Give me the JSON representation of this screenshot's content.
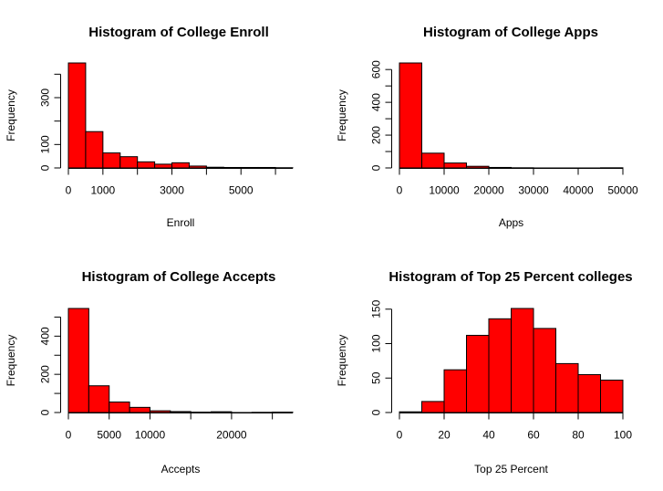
{
  "chart_data": [
    {
      "type": "bar",
      "title": "Histogram of College Enroll",
      "xlabel": "Enroll",
      "ylabel": "Frequency",
      "bins": [
        [
          0,
          500
        ],
        [
          500,
          1000
        ],
        [
          1000,
          1500
        ],
        [
          1500,
          2000
        ],
        [
          2000,
          2500
        ],
        [
          2500,
          3000
        ],
        [
          3000,
          3500
        ],
        [
          3500,
          4000
        ],
        [
          4000,
          4500
        ],
        [
          4500,
          5000
        ],
        [
          5000,
          5500
        ],
        [
          5500,
          6000
        ],
        [
          6000,
          6500
        ]
      ],
      "values": [
        448,
        155,
        64,
        48,
        26,
        16,
        22,
        8,
        3,
        2,
        2,
        2,
        1
      ],
      "xlim": [
        0,
        6500
      ],
      "ylim": [
        0,
        448
      ],
      "xticks": [
        0,
        1000,
        3000,
        5000
      ],
      "yticks": [
        0,
        100,
        300
      ],
      "fill_color": "#ff0000"
    },
    {
      "type": "bar",
      "title": "Histogram of College Apps",
      "xlabel": "Apps",
      "ylabel": "Frequency",
      "bins": [
        [
          0,
          5000
        ],
        [
          5000,
          10000
        ],
        [
          10000,
          15000
        ],
        [
          15000,
          20000
        ],
        [
          20000,
          25000
        ],
        [
          25000,
          30000
        ],
        [
          30000,
          35000
        ],
        [
          35000,
          40000
        ],
        [
          40000,
          45000
        ],
        [
          45000,
          50000
        ]
      ],
      "values": [
        640,
        90,
        30,
        10,
        3,
        1,
        0,
        0,
        0,
        1
      ],
      "xlim": [
        0,
        50000
      ],
      "ylim": [
        0,
        640
      ],
      "xticks": [
        0,
        10000,
        20000,
        30000,
        40000,
        50000
      ],
      "yticks": [
        0,
        200,
        400,
        600
      ],
      "fill_color": "#ff0000"
    },
    {
      "type": "bar",
      "title": "Histogram of College Accepts",
      "xlabel": "Accepts",
      "ylabel": "Frequency",
      "bins": [
        [
          0,
          2500
        ],
        [
          2500,
          5000
        ],
        [
          5000,
          7500
        ],
        [
          7500,
          10000
        ],
        [
          10000,
          12500
        ],
        [
          12500,
          15000
        ],
        [
          15000,
          17500
        ],
        [
          17500,
          20000
        ],
        [
          20000,
          22500
        ],
        [
          22500,
          25000
        ],
        [
          25000,
          27500
        ]
      ],
      "values": [
        545,
        140,
        55,
        27,
        9,
        5,
        2,
        4,
        0,
        1,
        2
      ],
      "xlim": [
        0,
        27500
      ],
      "ylim": [
        0,
        545
      ],
      "xticks": [
        0,
        5000,
        10000,
        20000
      ],
      "xtick_labels": [
        "0",
        "5000",
        "10000",
        "20000"
      ],
      "yticks": [
        0,
        200,
        400
      ],
      "fill_color": "#ff0000"
    },
    {
      "type": "bar",
      "title": "Histogram of Top 25 Percent colleges",
      "xlabel": "Top 25 Percent",
      "ylabel": "Frequency",
      "bins": [
        [
          0,
          10
        ],
        [
          10,
          20
        ],
        [
          20,
          30
        ],
        [
          30,
          40
        ],
        [
          40,
          50
        ],
        [
          50,
          60
        ],
        [
          60,
          70
        ],
        [
          70,
          80
        ],
        [
          80,
          90
        ],
        [
          90,
          100
        ]
      ],
      "values": [
        1,
        16,
        62,
        112,
        136,
        151,
        122,
        71,
        55,
        47
      ],
      "xlim": [
        0,
        100
      ],
      "ylim": [
        0,
        151
      ],
      "xticks": [
        0,
        20,
        40,
        60,
        80,
        100
      ],
      "yticks": [
        0,
        50,
        100,
        150
      ],
      "fill_color": "#ff0000"
    }
  ]
}
